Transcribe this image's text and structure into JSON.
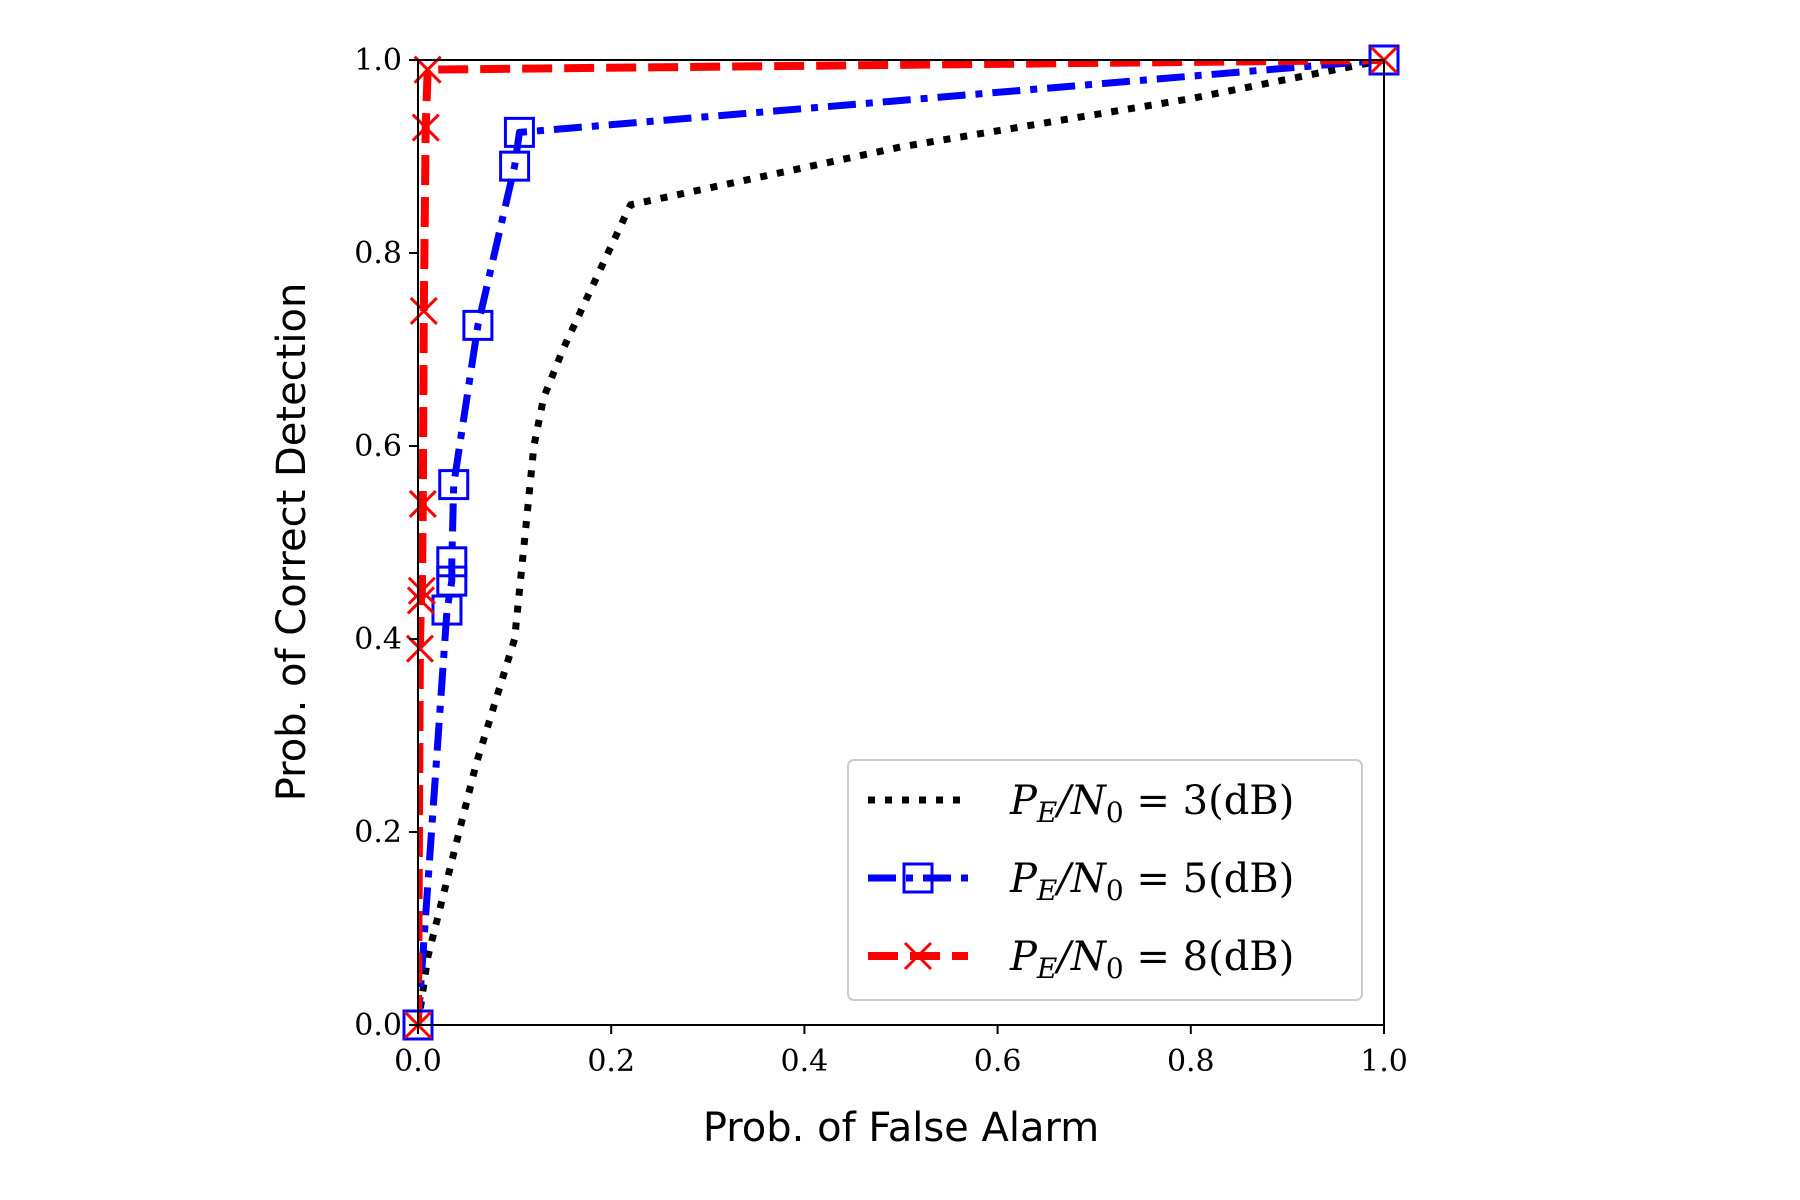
{
  "chart_data": {
    "type": "line",
    "xlabel": "Prob. of False Alarm",
    "ylabel": "Prob. of Correct Detection",
    "xlim": [
      0,
      1
    ],
    "ylim": [
      0,
      1
    ],
    "xticks": [
      0.0,
      0.2,
      0.4,
      0.6,
      0.8,
      1.0
    ],
    "yticks": [
      0.0,
      0.2,
      0.4,
      0.6,
      0.8,
      1.0
    ],
    "xtick_labels": [
      "0.0",
      "0.2",
      "0.4",
      "0.6",
      "0.8",
      "1.0"
    ],
    "ytick_labels": [
      "0.0",
      "0.2",
      "0.4",
      "0.6",
      "0.8",
      "1.0"
    ],
    "grid": false,
    "legend_position": "bottom-right",
    "series": [
      {
        "name": "P_E/N_0 = 3(dB)",
        "legend_ratio_label": "P",
        "legend_ratio_sub1": "E",
        "legend_ratio_slash": "/N",
        "legend_ratio_sub2": "0",
        "legend_value": " = 3(dB)",
        "color": "#000000",
        "style": "dotted",
        "marker": "none",
        "x": [
          0.0,
          0.01,
          0.03,
          0.06,
          0.1,
          0.11,
          0.12,
          0.13,
          0.15,
          0.22,
          0.5,
          0.8,
          1.0
        ],
        "y": [
          0.0,
          0.07,
          0.15,
          0.27,
          0.4,
          0.5,
          0.6,
          0.65,
          0.7,
          0.85,
          0.91,
          0.96,
          1.0
        ]
      },
      {
        "name": "P_E/N_0 = 5(dB)",
        "legend_ratio_label": "P",
        "legend_ratio_sub1": "E",
        "legend_ratio_slash": "/N",
        "legend_ratio_sub2": "0",
        "legend_value": " = 5(dB)",
        "color": "#0000ff",
        "style": "dashdot",
        "marker": "square",
        "x": [
          0.0,
          0.03,
          0.035,
          0.035,
          0.037,
          0.062,
          0.1,
          0.105,
          1.0
        ],
        "y": [
          0.0,
          0.43,
          0.46,
          0.48,
          0.56,
          0.725,
          0.89,
          0.925,
          1.0
        ]
      },
      {
        "name": "P_E/N_0 = 8(dB)",
        "legend_ratio_label": "P",
        "legend_ratio_sub1": "E",
        "legend_ratio_slash": "/N",
        "legend_ratio_sub2": "0",
        "legend_value": " = 8(dB)",
        "color": "#ff0000",
        "style": "dashed",
        "marker": "x",
        "x": [
          0.0,
          0.002,
          0.003,
          0.004,
          0.005,
          0.006,
          0.008,
          0.01,
          1.0
        ],
        "y": [
          0.0,
          0.39,
          0.44,
          0.45,
          0.54,
          0.74,
          0.93,
          0.99,
          1.0
        ]
      }
    ]
  }
}
